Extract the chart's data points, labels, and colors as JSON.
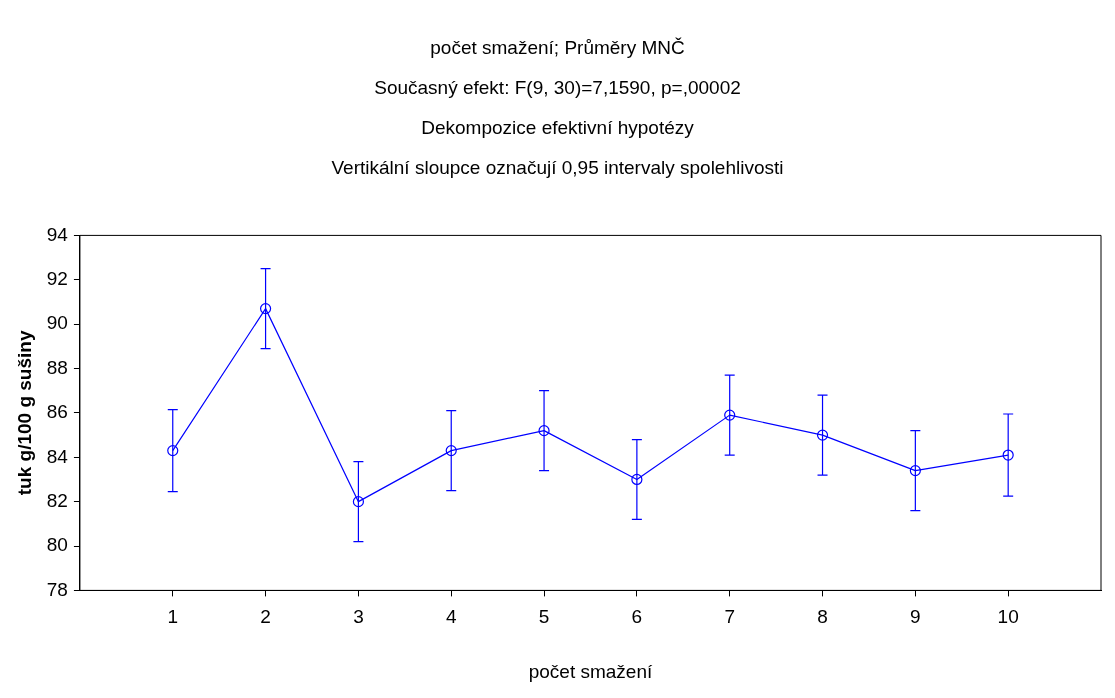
{
  "chart_data": {
    "type": "line",
    "title": "počet smažení; Průměry MNČ",
    "subtitle": "Současný efekt: F(9, 30)=7,1590, p=,00002",
    "annotations": [
      "Dekompozice efektivní hypotézy",
      "Vertikální sloupce označují 0,95 intervaly spolehlivosti"
    ],
    "xlabel": "počet smažení",
    "ylabel": "tuk g/100 g sušiny",
    "x": [
      1,
      2,
      3,
      4,
      5,
      6,
      7,
      8,
      9,
      10
    ],
    "series": [
      {
        "color": "#0000ff",
        "values": [
          84.3,
          90.7,
          82.0,
          84.3,
          85.2,
          83.0,
          85.9,
          85.0,
          83.4,
          84.1
        ],
        "errors": [
          1.85,
          1.8,
          1.8,
          1.8,
          1.8,
          1.8,
          1.8,
          1.8,
          1.8,
          1.85
        ]
      }
    ],
    "xlim": [
      0,
      11
    ],
    "xticks": [
      1,
      2,
      3,
      4,
      5,
      6,
      7,
      8,
      9,
      10
    ],
    "ylim": [
      78,
      94
    ],
    "yticks": [
      78,
      80,
      82,
      84,
      86,
      88,
      90,
      92,
      94
    ],
    "grid": false,
    "legend": false,
    "marker": "circle",
    "line_style": "solid"
  }
}
